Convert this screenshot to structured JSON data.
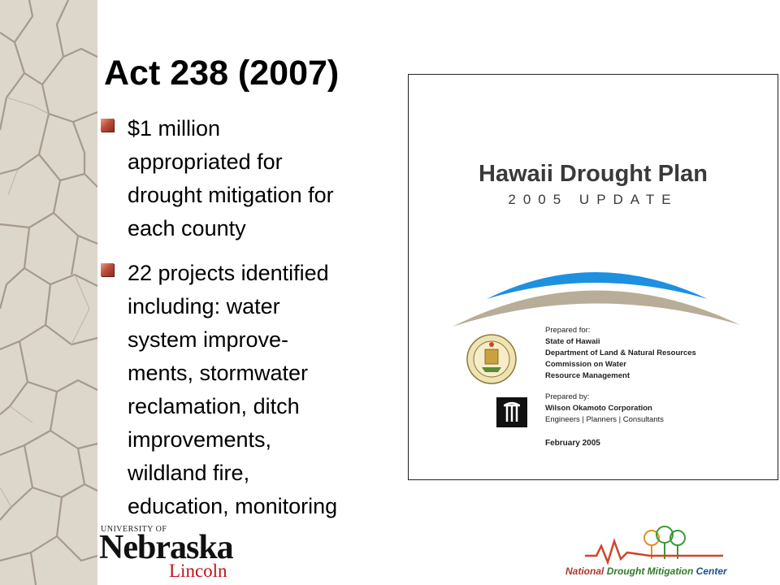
{
  "slide": {
    "title": "Act 238 (2007)",
    "bullets": [
      {
        "text": "$1 million\nappropriated for\ndrought mitigation for\neach county"
      },
      {
        "text": "22 projects identified\nincluding: water\nsystem improve-\nments, stormwater\nreclamation, ditch\nimprovements,\nwildland fire,\neducation, monitoring"
      }
    ]
  },
  "cover": {
    "title": "Hawaii Drought Plan",
    "subtitle": "2005 UPDATE",
    "prepared_for_label": "Prepared for:",
    "prepared_for_lines": [
      "State of Hawaii",
      "Department of Land & Natural Resources",
      "Commission on Water",
      "Resource Management"
    ],
    "prepared_by_label": "Prepared by:",
    "prepared_by_name": "Wilson Okamoto Corporation",
    "prepared_by_tagline": "Engineers | Planners | Consultants",
    "date": "February 2005",
    "arc_colors": {
      "blue": "#1e90e0",
      "tan": "#b8ad98"
    }
  },
  "footer": {
    "unl_small": "UNIVERSITY OF",
    "unl_big": "Nebraska",
    "unl_campus": "Lincoln",
    "ndmc_part1": "National",
    "ndmc_part2": "Drought Mitigation",
    "ndmc_part3": "Center"
  }
}
